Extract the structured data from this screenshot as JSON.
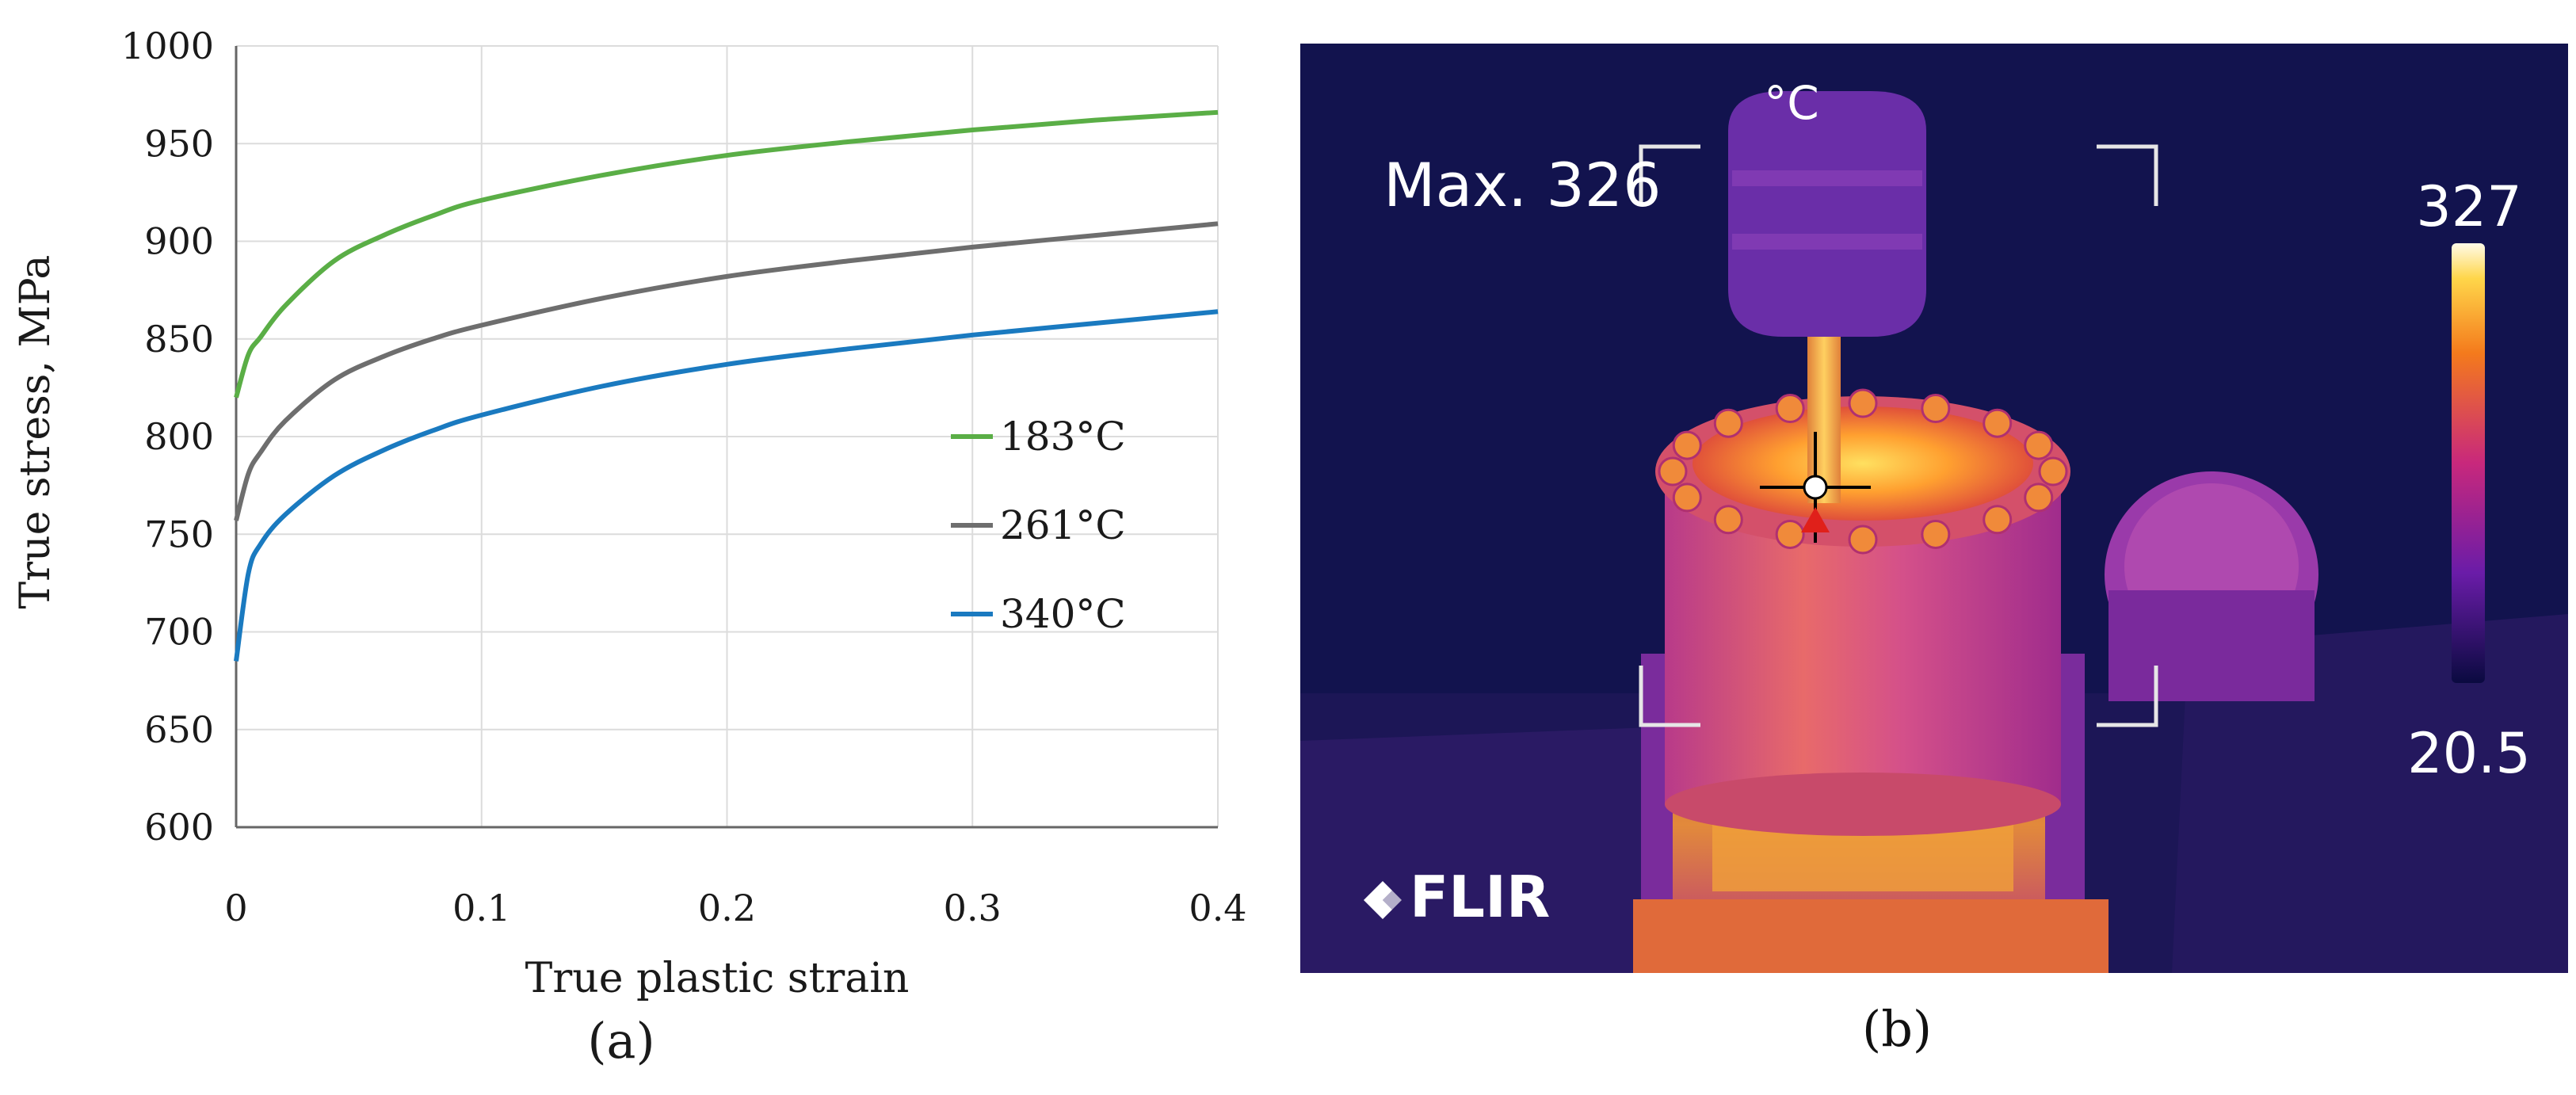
{
  "chart_data": {
    "type": "line",
    "xlabel": "True plastic strain",
    "ylabel": "True stress, MPa",
    "xlim": [
      0,
      0.4
    ],
    "ylim": [
      600,
      1000
    ],
    "x_ticks": [
      "0",
      "0.1",
      "0.2",
      "0.3",
      "0.4"
    ],
    "y_ticks": [
      "600",
      "650",
      "700",
      "750",
      "800",
      "850",
      "900",
      "950",
      "1000"
    ],
    "grid": "vertical and horizontal light gray",
    "legend_position": "center-right",
    "x": [
      0,
      0.005,
      0.01,
      0.02,
      0.04,
      0.06,
      0.08,
      0.1,
      0.15,
      0.2,
      0.25,
      0.3,
      0.35,
      0.4
    ],
    "series": [
      {
        "name": "183°C",
        "color": "#5aae46",
        "values": [
          820,
          842,
          851,
          867,
          890,
          903,
          913,
          921,
          934,
          944,
          951,
          957,
          962,
          966
        ]
      },
      {
        "name": "261°C",
        "color": "#6e6e6e",
        "values": [
          757,
          781,
          792,
          808,
          829,
          841,
          850,
          857,
          871,
          882,
          890,
          897,
          903,
          909
        ]
      },
      {
        "name": "340°C",
        "color": "#1a7ac0",
        "values": [
          685,
          730,
          745,
          760,
          780,
          793,
          803,
          811,
          826,
          837,
          845,
          852,
          858,
          864
        ]
      }
    ],
    "panel_label": "(a)"
  },
  "thermal_image": {
    "unit": "°C",
    "max_readout": "Max. 326",
    "scale_max": "327",
    "scale_min": "20.5",
    "brand": "FLIR",
    "panel_label": "(b)"
  }
}
